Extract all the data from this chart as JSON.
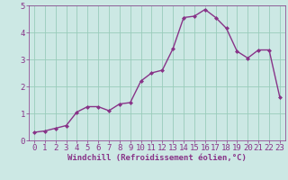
{
  "x": [
    0,
    1,
    2,
    3,
    4,
    5,
    6,
    7,
    8,
    9,
    10,
    11,
    12,
    13,
    14,
    15,
    16,
    17,
    18,
    19,
    20,
    21,
    22,
    23
  ],
  "y": [
    0.3,
    0.35,
    0.45,
    0.55,
    1.05,
    1.25,
    1.25,
    1.1,
    1.35,
    1.4,
    2.2,
    2.5,
    2.6,
    3.4,
    4.55,
    4.6,
    4.85,
    4.55,
    4.15,
    3.3,
    3.05,
    3.35,
    3.35,
    1.6
  ],
  "line_color": "#883388",
  "marker": "D",
  "marker_size": 2.0,
  "xlabel": "Windchill (Refroidissement éolien,°C)",
  "xlim": [
    -0.5,
    23.5
  ],
  "ylim": [
    0,
    5
  ],
  "xticks": [
    0,
    1,
    2,
    3,
    4,
    5,
    6,
    7,
    8,
    9,
    10,
    11,
    12,
    13,
    14,
    15,
    16,
    17,
    18,
    19,
    20,
    21,
    22,
    23
  ],
  "yticks": [
    0,
    1,
    2,
    3,
    4,
    5
  ],
  "grid_color": "#99ccbb",
  "bg_color": "#cce8e4",
  "tick_label_color": "#883388",
  "xlabel_color": "#883388",
  "xlabel_fontsize": 6.5,
  "tick_fontsize": 6.5,
  "line_width": 1.0
}
